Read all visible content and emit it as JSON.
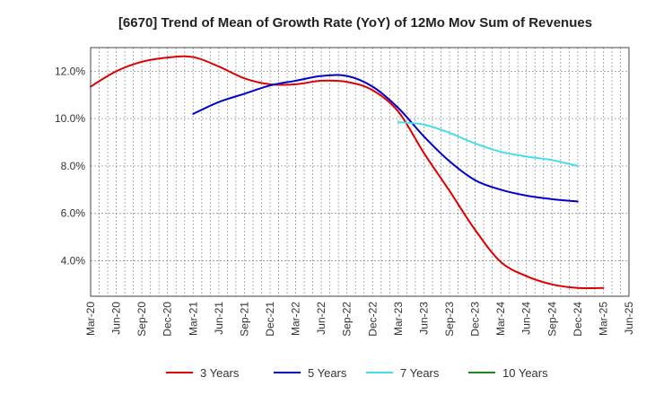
{
  "chart_data": {
    "type": "line",
    "title": "[6670]  Trend of Mean of Growth Rate (YoY) of 12Mo Mov Sum of Revenues",
    "xlabel": "",
    "ylabel": "",
    "ylim": [
      2.5,
      13.0
    ],
    "y_ticks": [
      4.0,
      6.0,
      8.0,
      10.0,
      12.0
    ],
    "y_tick_labels": [
      "4.0%",
      "6.0%",
      "8.0%",
      "10.0%",
      "12.0%"
    ],
    "x_tick_labels": [
      "Mar-20",
      "Jun-20",
      "Sep-20",
      "Dec-20",
      "Mar-21",
      "Jun-21",
      "Sep-21",
      "Dec-21",
      "Mar-22",
      "Jun-22",
      "Sep-22",
      "Dec-22",
      "Mar-23",
      "Jun-23",
      "Sep-23",
      "Dec-23",
      "Mar-24",
      "Jun-24",
      "Sep-24",
      "Dec-24",
      "Mar-25",
      "Jun-25"
    ],
    "grid": true,
    "legend_position": "bottom",
    "series": [
      {
        "name": "3 Years",
        "color": "#dd0000",
        "start_index": 0,
        "values": [
          11.35,
          12.0,
          12.4,
          12.58,
          12.6,
          12.2,
          11.7,
          11.45,
          11.45,
          11.6,
          11.55,
          11.2,
          10.3,
          8.55,
          6.95,
          5.3,
          3.95,
          3.35,
          3.0,
          2.85,
          2.85
        ]
      },
      {
        "name": "5 Years",
        "color": "#0000cc",
        "start_index": 4,
        "values": [
          10.2,
          10.7,
          11.05,
          11.4,
          11.6,
          11.8,
          11.8,
          11.35,
          10.45,
          9.25,
          8.2,
          7.4,
          7.0,
          6.75,
          6.6,
          6.5
        ]
      },
      {
        "name": "7 Years",
        "color": "#44ddee",
        "start_index": 12,
        "values": [
          9.85,
          9.75,
          9.4,
          8.95,
          8.6,
          8.4,
          8.25,
          8.0
        ]
      },
      {
        "name": "10 Years",
        "color": "#228822",
        "start_index": 0,
        "values": []
      }
    ]
  }
}
